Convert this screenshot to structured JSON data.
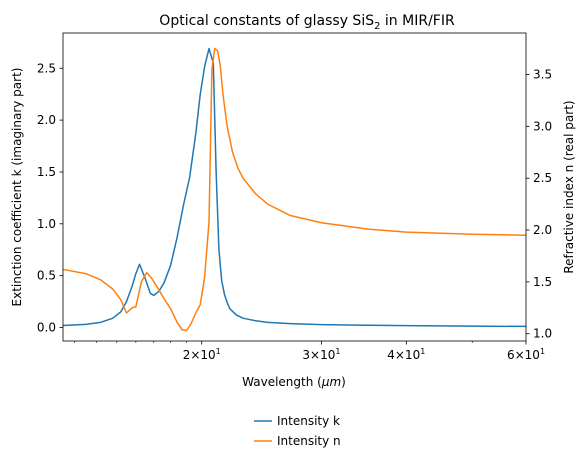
{
  "chart_data": {
    "type": "line",
    "title": "Optical constants of glassy SiS",
    "title_subscript": "2",
    "title_suffix": " in MIR/FIR",
    "xlabel": "Wavelength (",
    "xlabel_unit": "μm",
    "xlabel_close": ")",
    "ylabel_left": "Extinction coefficient k (imaginary part)",
    "ylabel_right": "Refractive index n (real part)",
    "x_scale": "log",
    "xlim": [
      12.5,
      60
    ],
    "ylim_left": [
      -0.13,
      2.84
    ],
    "ylim_right": [
      0.93,
      3.9
    ],
    "x_ticks": [
      {
        "value": 20,
        "base": "2",
        "times": "×10",
        "exp": "1"
      },
      {
        "value": 30,
        "base": "3",
        "times": "×10",
        "exp": "1"
      },
      {
        "value": 40,
        "base": "4",
        "times": "×10",
        "exp": "1"
      },
      {
        "value": 60,
        "base": "6",
        "times": "×10",
        "exp": "1"
      }
    ],
    "y_ticks_left": [
      {
        "value": 0.0,
        "label": "0.0"
      },
      {
        "value": 0.5,
        "label": "0.5"
      },
      {
        "value": 1.0,
        "label": "1.0"
      },
      {
        "value": 1.5,
        "label": "1.5"
      },
      {
        "value": 2.0,
        "label": "2.0"
      },
      {
        "value": 2.5,
        "label": "2.5"
      }
    ],
    "y_ticks_right": [
      {
        "value": 1.0,
        "label": "1.0"
      },
      {
        "value": 1.5,
        "label": "1.5"
      },
      {
        "value": 2.0,
        "label": "2.0"
      },
      {
        "value": 2.5,
        "label": "2.5"
      },
      {
        "value": 3.0,
        "label": "3.0"
      },
      {
        "value": 3.5,
        "label": "3.5"
      }
    ],
    "legend_position": "bottom-center",
    "grid": false,
    "series": [
      {
        "name": "Intensity k",
        "axis": "left",
        "color": "#1f77b4",
        "x": [
          12.5,
          13.5,
          14.2,
          14.8,
          15.2,
          15.5,
          15.8,
          16.0,
          16.2,
          16.5,
          16.8,
          17.0,
          17.3,
          17.6,
          18.0,
          18.4,
          18.8,
          19.2,
          19.6,
          19.9,
          20.2,
          20.5,
          20.8,
          21.0,
          21.2,
          21.4,
          21.6,
          21.8,
          22.0,
          22.5,
          23.0,
          24.0,
          25.0,
          27.0,
          30.0,
          35.0,
          40.0,
          50.0,
          60.0
        ],
        "y": [
          0.02,
          0.03,
          0.05,
          0.09,
          0.15,
          0.25,
          0.4,
          0.52,
          0.61,
          0.48,
          0.33,
          0.31,
          0.35,
          0.43,
          0.6,
          0.87,
          1.18,
          1.45,
          1.87,
          2.25,
          2.52,
          2.69,
          2.55,
          1.5,
          0.75,
          0.45,
          0.32,
          0.24,
          0.18,
          0.12,
          0.09,
          0.065,
          0.05,
          0.038,
          0.028,
          0.022,
          0.018,
          0.013,
          0.011
        ]
      },
      {
        "name": "Intensity n",
        "axis": "right",
        "color": "#ff7f0e",
        "x": [
          12.5,
          13.5,
          14.2,
          14.8,
          15.2,
          15.5,
          15.8,
          16.0,
          16.3,
          16.6,
          16.9,
          17.2,
          17.6,
          18.0,
          18.4,
          18.7,
          19.0,
          19.3,
          19.6,
          19.9,
          20.2,
          20.5,
          20.7,
          20.9,
          21.1,
          21.3,
          21.5,
          21.8,
          22.2,
          22.6,
          23.0,
          24.0,
          25.0,
          27.0,
          30.0,
          35.0,
          40.0,
          50.0,
          60.0
        ],
        "y": [
          1.62,
          1.58,
          1.52,
          1.43,
          1.33,
          1.2,
          1.25,
          1.26,
          1.5,
          1.59,
          1.53,
          1.45,
          1.34,
          1.24,
          1.11,
          1.04,
          1.03,
          1.1,
          1.2,
          1.28,
          1.55,
          2.08,
          3.55,
          3.75,
          3.73,
          3.58,
          3.3,
          3.0,
          2.75,
          2.6,
          2.5,
          2.35,
          2.25,
          2.14,
          2.07,
          2.01,
          1.98,
          1.96,
          1.95
        ]
      }
    ]
  }
}
